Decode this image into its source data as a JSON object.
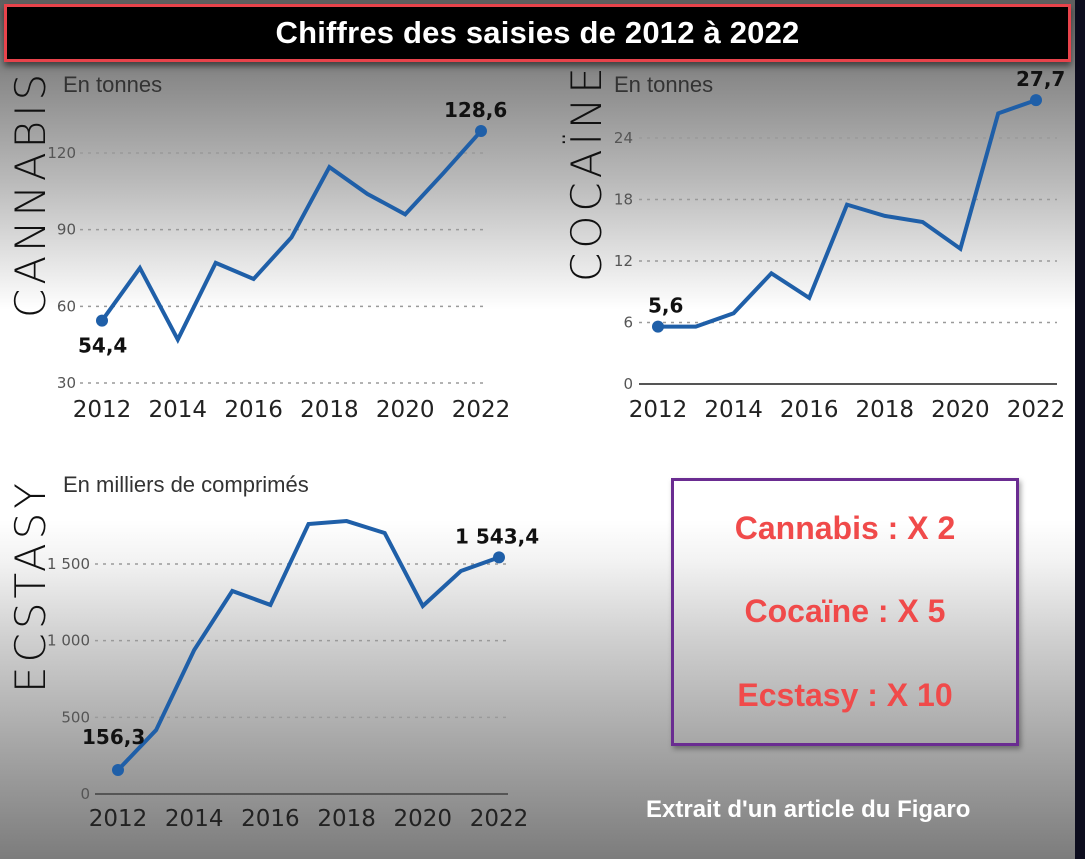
{
  "title": "Chiffres des saisies de 2012 à 2022",
  "colors": {
    "line": "#1f5fa8",
    "title_border": "#e8434b",
    "box_border": "#6a2c91",
    "box_text": "#f04a4a"
  },
  "charts": {
    "cannabis": {
      "name": "CANNABIS",
      "unit": "En tonnes"
    },
    "cocaine": {
      "name": "COCAÏNE",
      "unit": "En tonnes"
    },
    "ecstasy": {
      "name": "ECSTASY",
      "unit": "En milliers de comprimés"
    }
  },
  "summary": {
    "cannabis": "Cannabis : X 2",
    "cocaine": "Cocaïne : X 5",
    "ecstasy": "Ecstasy : X 10"
  },
  "source": "Extrait d'un article du Figaro",
  "chart_data": [
    {
      "type": "line",
      "title": "CANNABIS",
      "subtitle": "En tonnes",
      "xlabel": "",
      "ylabel": "En tonnes",
      "x": [
        2012,
        2013,
        2014,
        2015,
        2016,
        2017,
        2018,
        2019,
        2020,
        2021,
        2022
      ],
      "x_ticks": [
        "2012",
        "2014",
        "2016",
        "2018",
        "2020",
        "2022"
      ],
      "y_ticks": [
        "30",
        "60",
        "90",
        "120"
      ],
      "ylim": [
        30,
        130
      ],
      "grid": true,
      "series": [
        {
          "name": "Cannabis",
          "values": [
            54.4,
            75,
            47,
            77,
            70.7,
            87,
            114.5,
            104,
            96,
            112,
            128.6
          ]
        }
      ],
      "annotations": [
        {
          "x": 2012,
          "label": "54,4"
        },
        {
          "x": 2022,
          "label": "128,6"
        }
      ]
    },
    {
      "type": "line",
      "title": "COCAÏNE",
      "subtitle": "En tonnes",
      "xlabel": "",
      "ylabel": "En tonnes",
      "x": [
        2012,
        2013,
        2014,
        2015,
        2016,
        2017,
        2018,
        2019,
        2020,
        2021,
        2022
      ],
      "x_ticks": [
        "2012",
        "2014",
        "2016",
        "2018",
        "2020",
        "2022"
      ],
      "y_ticks": [
        "0",
        "6",
        "12",
        "18",
        "24"
      ],
      "ylim": [
        0,
        28
      ],
      "grid": true,
      "series": [
        {
          "name": "Cocaïne",
          "values": [
            5.6,
            5.6,
            6.9,
            10.8,
            8.4,
            17.5,
            16.4,
            15.8,
            13.2,
            26.4,
            27.7
          ]
        }
      ],
      "annotations": [
        {
          "x": 2012,
          "label": "5,6"
        },
        {
          "x": 2022,
          "label": "27,7"
        }
      ]
    },
    {
      "type": "line",
      "title": "ECSTASY",
      "subtitle": "En milliers de comprimés",
      "xlabel": "",
      "ylabel": "En milliers de comprimés",
      "x": [
        2012,
        2013,
        2014,
        2015,
        2016,
        2017,
        2018,
        2019,
        2020,
        2021,
        2022
      ],
      "x_ticks": [
        "2012",
        "2014",
        "2016",
        "2018",
        "2020",
        "2022"
      ],
      "y_ticks": [
        "0",
        "500",
        "1 000",
        "1 500"
      ],
      "ylim": [
        0,
        1800
      ],
      "grid": true,
      "series": [
        {
          "name": "Ecstasy",
          "values": [
            156.3,
            417,
            939,
            1324,
            1233,
            1761,
            1780,
            1702,
            1226,
            1454,
            1543.4
          ]
        }
      ],
      "annotations": [
        {
          "x": 2012,
          "label": "156,3"
        },
        {
          "x": 2022,
          "label": "1 543,4"
        }
      ]
    }
  ]
}
